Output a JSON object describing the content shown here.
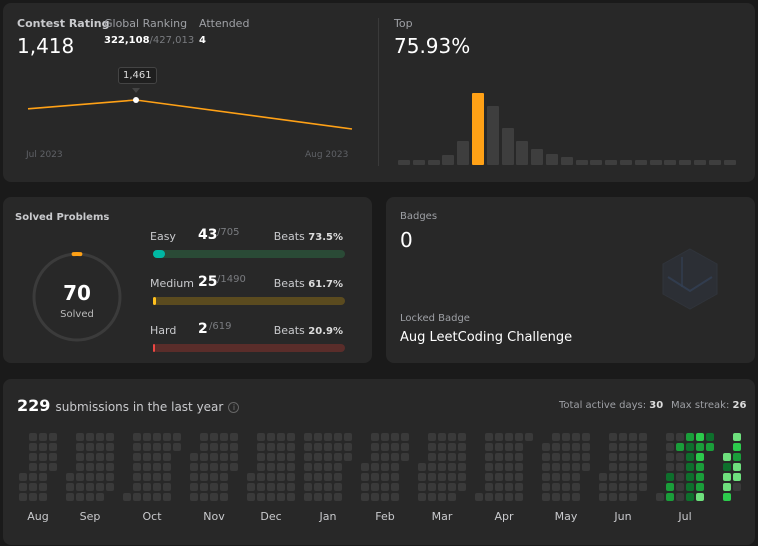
{
  "contest": {
    "rating_label": "Contest Rating",
    "rating": "1,418",
    "ranking_label": "Global Ranking",
    "ranking": "322,108",
    "ranking_total": "/427,013",
    "attended_label": "Attended",
    "attended": "4",
    "tooltip": "1,461",
    "x_start_label": "Jul 2023",
    "x_end_label": "Aug 2023",
    "line_color": "#ffa116",
    "ratings": [
      1448,
      1461,
      1418
    ],
    "highlight_index": 1,
    "top_label": "Top",
    "top_value": "75.93%",
    "distribution": {
      "values": [
        1,
        1,
        1,
        2,
        5,
        15,
        12.3,
        7.7,
        5,
        3.3,
        2.2,
        1.6,
        1,
        1,
        1,
        1,
        1,
        1,
        1,
        1,
        1,
        1,
        1
      ],
      "highlight_index": 5,
      "highlight_color": "#ffa116",
      "bar_color": "#3e3e3e"
    }
  },
  "solved": {
    "title": "Solved Problems",
    "total": "70",
    "total_label": "Solved",
    "ring_fraction": 0.025,
    "beats_label": "Beats",
    "levels": [
      {
        "name": "Easy",
        "solved": "43",
        "total": "/705",
        "beats": "73.5%",
        "fraction": 0.061,
        "fill": "#00b8a3",
        "track": "#2a4a36"
      },
      {
        "name": "Medium",
        "solved": "25",
        "total": "/1490",
        "beats": "61.7%",
        "fraction": 0.017,
        "fill": "#ffc01e",
        "track": "#5b4b1f"
      },
      {
        "name": "Hard",
        "solved": "2",
        "total": "/619",
        "beats": "20.9%",
        "fraction": 0.003,
        "fill": "#ef4743",
        "track": "#5a2d2a"
      }
    ]
  },
  "badges": {
    "label": "Badges",
    "count": "0",
    "locked_label": "Locked Badge",
    "locked_name": "Aug LeetCoding Challenge",
    "icon": "hexagon-badge-icon"
  },
  "submissions": {
    "count": "229",
    "text": "submissions in the last year",
    "active_label": "Total active days:",
    "active_value": "30",
    "streak_label": "Max streak:",
    "streak_value": "26",
    "range_start": "2022-08-11",
    "range_end": "2023-08-11",
    "months": [
      "Aug",
      "Sep",
      "Oct",
      "Nov",
      "Dec",
      "Jan",
      "Feb",
      "Mar",
      "Apr",
      "May",
      "Jun",
      "Jul"
    ],
    "level_colors": [
      "#3a3a3a",
      "#0e6f2c",
      "#1a9e3a",
      "#2ccb4c",
      "#6ee07d"
    ],
    "active": {
      "2023-07-06": 1,
      "2023-07-07": 2,
      "2023-07-08": 2,
      "2023-07-10": 2,
      "2023-07-16": 2,
      "2023-07-17": 1,
      "2023-07-18": 1,
      "2023-07-19": 1,
      "2023-07-20": 1,
      "2023-07-21": 1,
      "2023-07-22": 1,
      "2023-07-23": 3,
      "2023-07-24": 2,
      "2023-07-25": 3,
      "2023-07-26": 2,
      "2023-07-27": 2,
      "2023-07-28": 2,
      "2023-07-29": 4,
      "2023-07-30": 1,
      "2023-07-31": 2,
      "2023-08-01": 4,
      "2023-08-02": 1,
      "2023-08-03": 4,
      "2023-08-04": 4,
      "2023-08-05": 3,
      "2023-08-06": 4,
      "2023-08-07": 3,
      "2023-08-08": 2,
      "2023-08-09": 4,
      "2023-08-10": 4
    }
  }
}
